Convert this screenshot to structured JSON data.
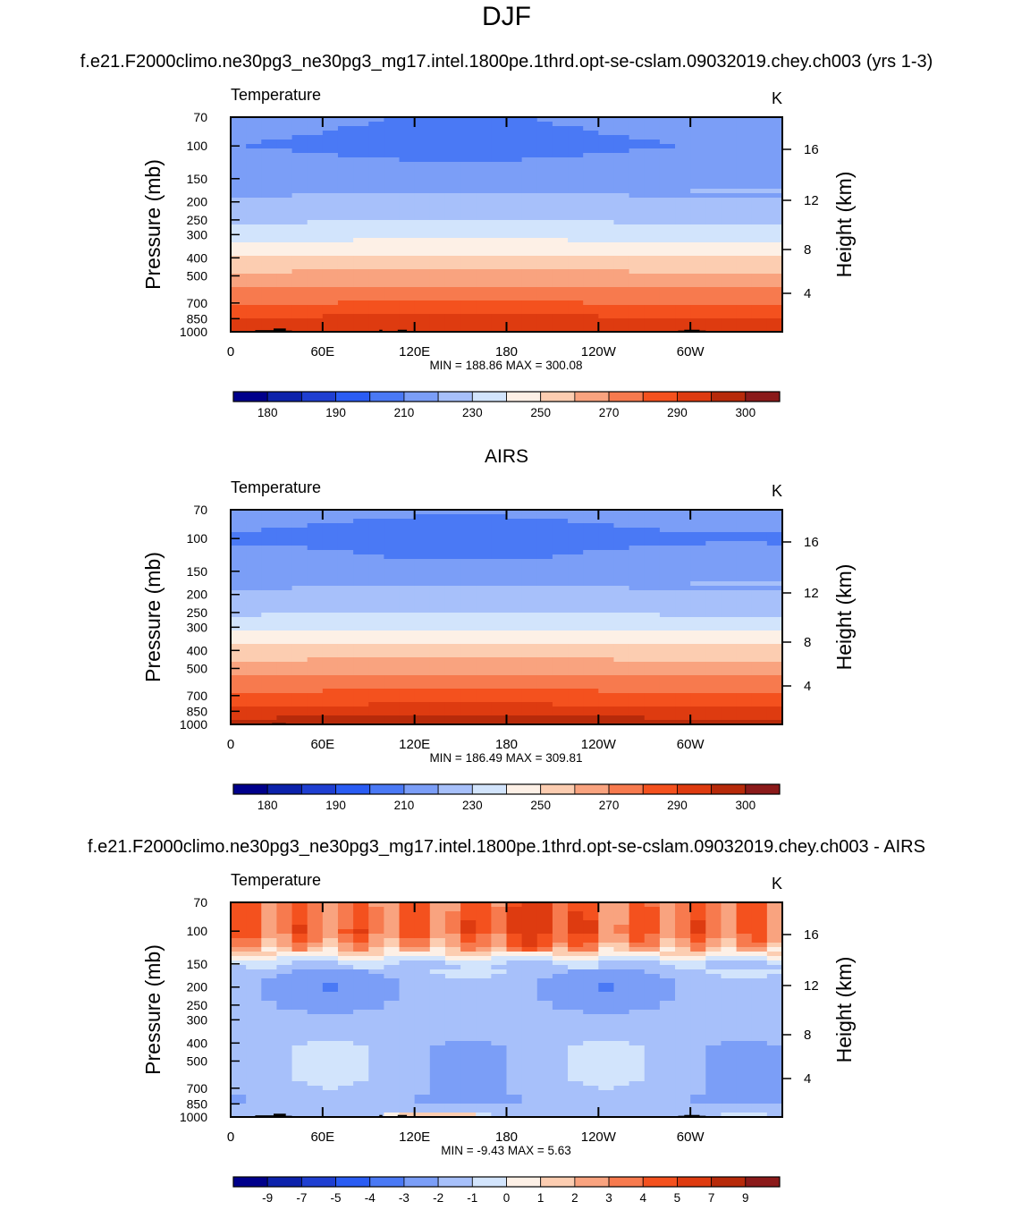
{
  "page": {
    "title": "DJF"
  },
  "palettes": {
    "temperature": [
      "#00008b",
      "#0c22ab",
      "#1f3fd1",
      "#2a5cf3",
      "#4a79f5",
      "#7b9ef7",
      "#a7c0fa",
      "#d2e4fc",
      "#fdf0e6",
      "#fccdb1",
      "#f9a37f",
      "#f77a4e",
      "#f4511e",
      "#de3b10",
      "#b72a0a",
      "#8b1a1a"
    ],
    "difference": [
      "#00008b",
      "#0c22ab",
      "#1f3fd1",
      "#2a5cf3",
      "#4a79f5",
      "#7b9ef7",
      "#a7c0fa",
      "#d2e4fc",
      "#fdf0e6",
      "#fccdb1",
      "#f9a37f",
      "#f77a4e",
      "#f4511e",
      "#de3b10",
      "#b72a0a",
      "#8b1a1a"
    ],
    "topography": "#000000"
  },
  "chart_data": [
    {
      "type": "heatmap",
      "title": "f.e21.F2000climo.ne30pg3_ne30pg3_mg17.intel.1800pe.1thrd.opt-se-cslam.09032019.chey.ch003 (yrs 1-3)",
      "field_label": "Temperature",
      "units": "K",
      "ylabel": "Pressure (mb)",
      "ylabel_right": "Height (km)",
      "x_ticks": [
        "0",
        "60E",
        "120E",
        "180",
        "120W",
        "60W"
      ],
      "x_tick_values": [
        0,
        60,
        120,
        180,
        240,
        300
      ],
      "xlim": [
        0,
        360
      ],
      "y_ticks": [
        "70",
        "100",
        "150",
        "200",
        "250",
        "300",
        "400",
        "500",
        "700",
        "850",
        "1000"
      ],
      "y_tick_values": [
        70,
        100,
        150,
        200,
        250,
        300,
        400,
        500,
        700,
        850,
        1000
      ],
      "ylim": [
        1000,
        70
      ],
      "y_scale": "log",
      "height_ticks": [
        "16",
        "12",
        "8",
        "4"
      ],
      "stats": "MIN = 188.86  MAX = 300.08",
      "colorbar_labels": [
        "180",
        "190",
        "210",
        "230",
        "250",
        "270",
        "290",
        "300"
      ],
      "contour_levels": [
        175,
        180,
        185,
        190,
        200,
        210,
        220,
        230,
        240,
        250,
        260,
        270,
        280,
        290,
        295,
        300
      ],
      "profile": [
        [
          70,
          201
        ],
        [
          100,
          199
        ],
        [
          130,
          202
        ],
        [
          160,
          207
        ],
        [
          200,
          212
        ],
        [
          250,
          219
        ],
        [
          300,
          226
        ],
        [
          400,
          242
        ],
        [
          500,
          253
        ],
        [
          600,
          262
        ],
        [
          700,
          270
        ],
        [
          850,
          282
        ],
        [
          1000,
          290
        ]
      ],
      "land": [
        [
          10,
          30,
          990
        ],
        [
          16,
          30,
          980
        ],
        [
          28,
          36,
          960
        ],
        [
          36,
          40,
          985
        ],
        [
          97,
          99,
          975
        ],
        [
          109,
          115,
          975
        ],
        [
          292,
          310,
          985
        ],
        [
          296,
          306,
          975
        ]
      ]
    },
    {
      "type": "heatmap",
      "title": "AIRS",
      "field_label": "Temperature",
      "units": "K",
      "ylabel": "Pressure (mb)",
      "ylabel_right": "Height (km)",
      "x_ticks": [
        "0",
        "60E",
        "120E",
        "180",
        "120W",
        "60W"
      ],
      "x_tick_values": [
        0,
        60,
        120,
        180,
        240,
        300
      ],
      "xlim": [
        0,
        360
      ],
      "y_ticks": [
        "70",
        "100",
        "150",
        "200",
        "250",
        "300",
        "400",
        "500",
        "700",
        "850",
        "1000"
      ],
      "y_tick_values": [
        70,
        100,
        150,
        200,
        250,
        300,
        400,
        500,
        700,
        850,
        1000
      ],
      "ylim": [
        1000,
        70
      ],
      "y_scale": "log",
      "height_ticks": [
        "16",
        "12",
        "8",
        "4"
      ],
      "stats": "MIN = 186.49  MAX = 309.81",
      "colorbar_labels": [
        "180",
        "190",
        "210",
        "230",
        "250",
        "270",
        "290",
        "300"
      ],
      "contour_levels": [
        175,
        180,
        185,
        190,
        200,
        210,
        220,
        230,
        240,
        250,
        260,
        270,
        280,
        290,
        295,
        300
      ],
      "profile": [
        [
          70,
          202
        ],
        [
          100,
          198
        ],
        [
          130,
          202
        ],
        [
          160,
          207
        ],
        [
          200,
          212
        ],
        [
          250,
          219
        ],
        [
          300,
          228
        ],
        [
          400,
          244
        ],
        [
          500,
          256
        ],
        [
          600,
          265
        ],
        [
          700,
          273
        ],
        [
          850,
          285
        ],
        [
          1000,
          296
        ]
      ],
      "land": [
        [
          27,
          36,
          985
        ]
      ]
    },
    {
      "type": "heatmap",
      "title": "f.e21.F2000climo.ne30pg3_ne30pg3_mg17.intel.1800pe.1thrd.opt-se-cslam.09032019.chey.ch003 - AIRS",
      "field_label": "Temperature",
      "units": "K",
      "ylabel": "Pressure (mb)",
      "ylabel_right": "Height (km)",
      "x_ticks": [
        "0",
        "60E",
        "120E",
        "180",
        "120W",
        "60W"
      ],
      "x_tick_values": [
        0,
        60,
        120,
        180,
        240,
        300
      ],
      "xlim": [
        0,
        360
      ],
      "y_ticks": [
        "70",
        "100",
        "150",
        "200",
        "250",
        "300",
        "400",
        "500",
        "700",
        "850",
        "1000"
      ],
      "y_tick_values": [
        70,
        100,
        150,
        200,
        250,
        300,
        400,
        500,
        700,
        850,
        1000
      ],
      "ylim": [
        1000,
        70
      ],
      "y_scale": "log",
      "height_ticks": [
        "16",
        "12",
        "8",
        "4"
      ],
      "stats": "MIN =  -9.43  MAX =   5.63",
      "colorbar_labels": [
        "-9",
        "-7",
        "-5",
        "-4",
        "-3",
        "-2",
        "-1",
        "0",
        "1",
        "2",
        "3",
        "4",
        "5",
        "7",
        "9"
      ],
      "contour_levels": [
        -9,
        -7,
        -5,
        -4,
        -3,
        -2,
        -1,
        0,
        1,
        2,
        3,
        4,
        5,
        7,
        9
      ],
      "profile": [
        [
          70,
          3.5
        ],
        [
          100,
          3.8
        ],
        [
          120,
          2.5
        ],
        [
          135,
          0.5
        ],
        [
          150,
          -1.2
        ],
        [
          200,
          -2.2
        ],
        [
          300,
          -1.5
        ],
        [
          500,
          -1.5
        ],
        [
          700,
          -1.6
        ],
        [
          850,
          -2.0
        ],
        [
          1000,
          -1.0
        ]
      ],
      "land": [
        [
          10,
          30,
          990
        ],
        [
          16,
          30,
          980
        ],
        [
          28,
          36,
          960
        ],
        [
          36,
          40,
          985
        ],
        [
          97,
          99,
          975
        ],
        [
          109,
          115,
          975
        ],
        [
          292,
          310,
          985
        ],
        [
          296,
          306,
          975
        ]
      ]
    }
  ]
}
